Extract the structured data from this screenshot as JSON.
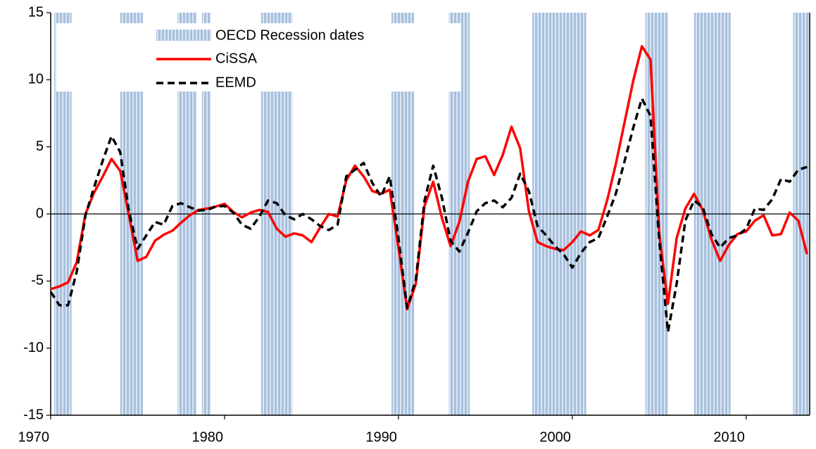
{
  "chart_data": {
    "type": "line",
    "x": [
      1970,
      1970.5,
      1971,
      1971.5,
      1972,
      1972.5,
      1973,
      1973.5,
      1974,
      1974.5,
      1975,
      1975.5,
      1976,
      1976.5,
      1977,
      1977.5,
      1978,
      1978.5,
      1979,
      1979.5,
      1980,
      1980.5,
      1981,
      1981.5,
      1982,
      1982.5,
      1983,
      1983.5,
      1984,
      1984.5,
      1985,
      1985.5,
      1986,
      1986.5,
      1987,
      1987.5,
      1988,
      1988.5,
      1989,
      1989.5,
      1990,
      1990.5,
      1991,
      1991.5,
      1992,
      1992.5,
      1993,
      1993.5,
      1994,
      1994.5,
      1995,
      1995.5,
      1996,
      1996.5,
      1997,
      1997.5,
      1998,
      1998.5,
      1999,
      1999.5,
      2000,
      2000.5,
      2001,
      2001.5,
      2002,
      2002.5,
      2003,
      2003.5,
      2004,
      2004.5,
      2005,
      2005.5,
      2006,
      2006.5,
      2007,
      2007.5,
      2008,
      2008.5,
      2009,
      2009.5,
      2010,
      2010.5,
      2011,
      2011.5,
      2012,
      2012.5,
      2013,
      2013.5
    ],
    "series": [
      {
        "name": "CiSSA",
        "color": "#ff0000",
        "dash": false,
        "values": [
          -5.6,
          -5.4,
          -5.1,
          -3.6,
          0,
          1.6,
          2.8,
          4.1,
          3.2,
          -0.1,
          -3.5,
          -3.2,
          -2.0,
          -1.55,
          -1.25,
          -0.65,
          -0.1,
          0.3,
          0.4,
          0.55,
          0.75,
          0.15,
          -0.25,
          0.1,
          0.3,
          0.15,
          -1.1,
          -1.7,
          -1.45,
          -1.6,
          -2.1,
          -1.0,
          0,
          -0.2,
          2.5,
          3.6,
          2.8,
          1.7,
          1.5,
          1.8,
          -2.5,
          -7.1,
          -5.2,
          0.6,
          2.4,
          -0.3,
          -2.4,
          -0.6,
          2.4,
          4.1,
          4.3,
          2.9,
          4.4,
          6.5,
          4.9,
          0.2,
          -2.1,
          -2.4,
          -2.6,
          -2.7,
          -2.1,
          -1.3,
          -1.6,
          -1.2,
          1.0,
          3.7,
          6.8,
          9.9,
          12.5,
          11.5,
          -1.5,
          -6.7,
          -1.8,
          0.4,
          1.5,
          0.3,
          -1.9,
          -3.5,
          -2.3,
          -1.5,
          -1.3,
          -0.5,
          -0.1,
          -1.6,
          -1.5,
          0.1,
          -0.5,
          -3.0
        ]
      },
      {
        "name": "EEMD",
        "color": "#000000",
        "dash": true,
        "values": [
          -5.8,
          -6.8,
          -6.8,
          -4.3,
          -0.1,
          2,
          4,
          5.8,
          4.6,
          0.2,
          -2.6,
          -1.6,
          -0.6,
          -0.8,
          0.6,
          0.8,
          0.5,
          0.25,
          0.3,
          0.55,
          0.6,
          0.1,
          -0.8,
          -1.1,
          -0.2,
          1.0,
          0.8,
          -0.1,
          -0.4,
          0,
          -0.4,
          -0.9,
          -1.2,
          -0.8,
          2.8,
          3.3,
          3.8,
          2.3,
          1.3,
          2.8,
          -1.8,
          -7.0,
          -4.9,
          1,
          3.6,
          1.2,
          -2.0,
          -2.8,
          -1.4,
          0.2,
          0.8,
          1.0,
          0.5,
          1.2,
          3.0,
          1.7,
          -0.9,
          -1.6,
          -2.4,
          -3.0,
          -4.0,
          -2.9,
          -2.1,
          -1.8,
          -0.2,
          1.5,
          3.9,
          6.4,
          8.6,
          7.3,
          -2.0,
          -8.8,
          -5.2,
          -0.5,
          1.0,
          0.5,
          -1.5,
          -2.5,
          -1.8,
          -1.6,
          -1.1,
          0.4,
          0.3,
          1.1,
          2.6,
          2.4,
          3.3,
          3.5
        ]
      }
    ],
    "bands": {
      "name": "OECD Recession dates",
      "color": "#b8cce4",
      "ranges": [
        [
          1970.2,
          1971.2
        ],
        [
          1974.0,
          1975.3
        ],
        [
          1977.3,
          1978.4
        ],
        [
          1978.7,
          1979.2
        ],
        [
          1982.1,
          1983.9
        ],
        [
          1989.6,
          1990.9
        ],
        [
          1992.9,
          1994.1
        ],
        [
          1997.7,
          2000.8
        ],
        [
          2004.2,
          2005.5
        ],
        [
          2007.0,
          2009.1
        ],
        [
          2012.7,
          2013.6
        ]
      ]
    },
    "xlim": [
      1970,
      2013.65
    ],
    "xticks": [
      1970,
      1980,
      1990,
      2000,
      2010
    ],
    "ylim": [
      -15,
      15
    ],
    "yticks": [
      -15,
      -10,
      -5,
      0,
      5,
      10,
      15
    ]
  }
}
